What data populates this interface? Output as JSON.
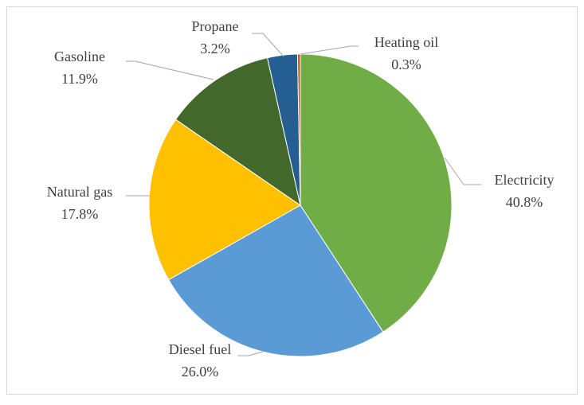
{
  "chart_data": {
    "type": "pie",
    "categories": [
      "Electricity",
      "Diesel fuel",
      "Natural gas",
      "Gasoline",
      "Propane",
      "Heating oil"
    ],
    "values": [
      40.8,
      26.0,
      17.8,
      11.9,
      3.2,
      0.3
    ],
    "value_labels": [
      "40.8%",
      "26.0%",
      "17.8%",
      "11.9%",
      "3.2%",
      "0.3%"
    ],
    "colors": [
      "#70ad47",
      "#5b9bd5",
      "#ffc000",
      "#43682b",
      "#255e91",
      "#c55a11"
    ]
  }
}
